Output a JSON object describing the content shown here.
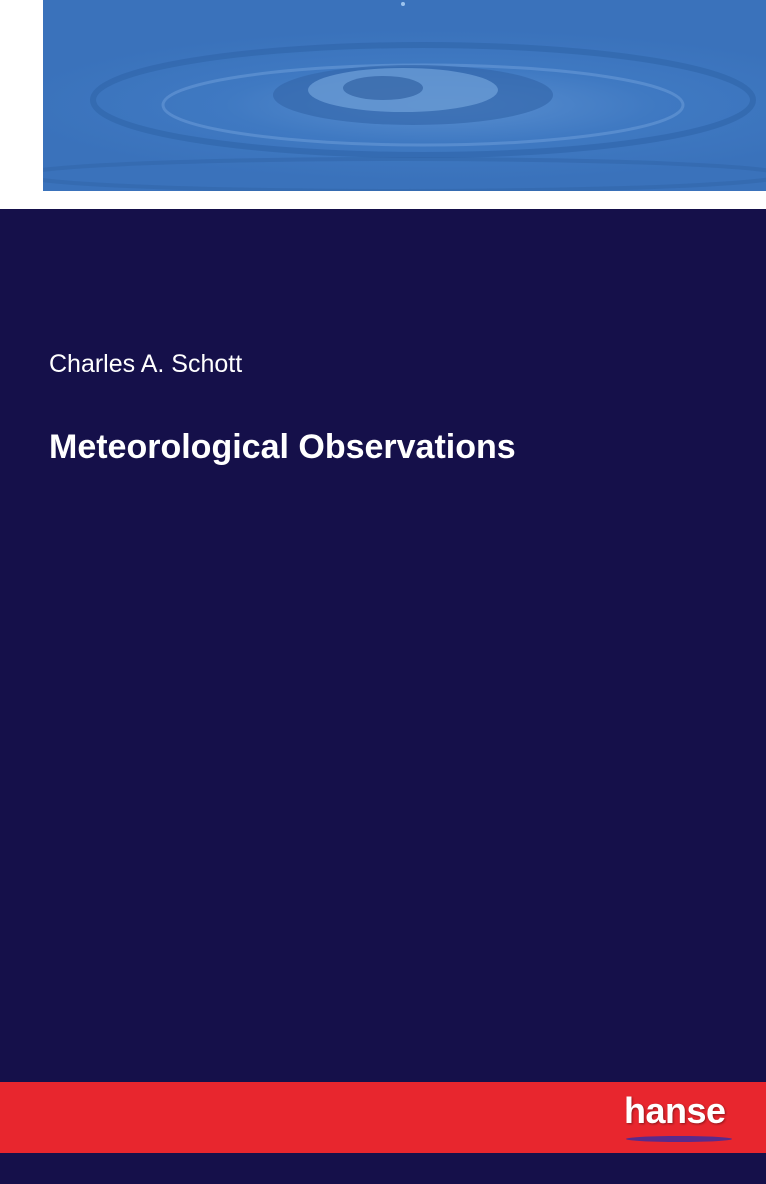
{
  "cover": {
    "author": "Charles A. Schott",
    "title": "Meteorological Observations",
    "publisher_logo": "hanse",
    "image": "water-drop-splash",
    "colors": {
      "background": "#15104a",
      "band": "#e8262e",
      "photo": "#3f79c2",
      "text": "#ffffff"
    }
  }
}
